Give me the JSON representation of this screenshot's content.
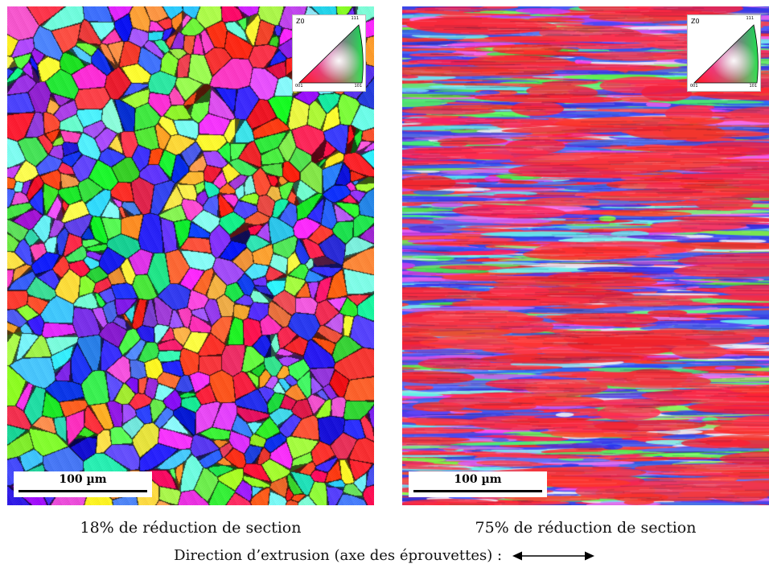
{
  "panels": [
    {
      "id": "left",
      "microstructure": "equiaxed-grains",
      "legend": {
        "axis": "Z0",
        "corner_top": "111",
        "corner_left": "001",
        "corner_right": "101"
      },
      "scale_bar": "100 µm",
      "caption": "18% de réduction de section"
    },
    {
      "id": "right",
      "microstructure": "elongated-bands",
      "legend": {
        "axis": "Z0",
        "corner_top": "111",
        "corner_left": "001",
        "corner_right": "101"
      },
      "scale_bar": "100 µm",
      "caption": "75% de réduction de section"
    }
  ],
  "footer": {
    "direction_label": "Direction d’extrusion (axe des éprouvettes) :",
    "arrow_icon": "double-headed-arrow-icon"
  },
  "colors": {
    "ipf_001": "#ff2a2a",
    "ipf_101": "#22ee44",
    "ipf_111": "#2a3aff",
    "map_left_base": "#3a40d8",
    "map_right_base": "#3a40d8"
  }
}
